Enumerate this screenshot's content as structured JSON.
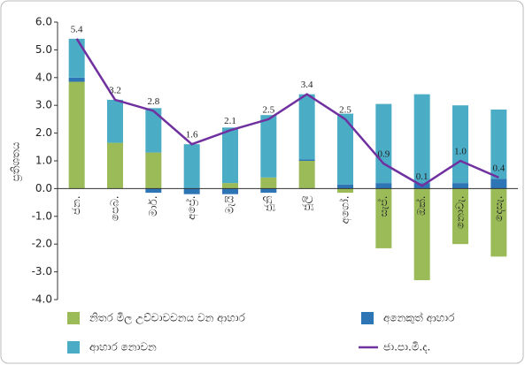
{
  "chart_data": {
    "type": "bar_line",
    "y_label": "ප්‍රතිශතය",
    "categories": [
      "ජන.",
      "පෙබ.",
      "මාර්.",
      "අප්‍රේ.",
      "මැයි",
      "ජූනි",
      "ජූලි",
      "අගෝ.",
      "සැප්.",
      "ඔක්.",
      "නොවැ.",
      "දෙසැ."
    ],
    "series": [
      {
        "name": "නිතර මිල උච්චාවචනය වන ආහාර",
        "color": "#9bbb59",
        "kind": "bar",
        "values": [
          3.85,
          1.65,
          1.3,
          0.0,
          0.2,
          0.4,
          1.0,
          -0.15,
          -2.15,
          -3.3,
          -2.0,
          -2.45
        ]
      },
      {
        "name": "අනෙකුත් ආහාර",
        "color": "#2e75b6",
        "kind": "bar",
        "values": [
          0.15,
          0.0,
          -0.15,
          -0.2,
          -0.2,
          -0.15,
          0.05,
          0.15,
          0.2,
          0.2,
          0.2,
          0.35
        ]
      },
      {
        "name": "ආහාර නොවන",
        "color": "#4bacc6",
        "kind": "bar",
        "values": [
          1.4,
          1.55,
          1.6,
          1.6,
          2.0,
          2.25,
          2.35,
          2.55,
          2.85,
          3.2,
          2.8,
          2.5
        ]
      },
      {
        "name": "ජා.පා.මි.ද.",
        "color": "#7030a0",
        "kind": "line",
        "values": [
          5.4,
          3.2,
          2.8,
          1.6,
          2.1,
          2.5,
          3.4,
          2.5,
          0.9,
          0.1,
          1.0,
          0.4
        ],
        "value_labels": [
          "5.4",
          "3.2",
          "2.8",
          "1.6",
          "2.1",
          "2.5",
          "3.4",
          "2.5",
          "0.9",
          "0.1",
          "1.0",
          "0.4"
        ]
      }
    ],
    "ylim": [
      -4,
      6
    ],
    "yticks": [
      {
        "value": -4,
        "label": "-4.0"
      },
      {
        "value": -3,
        "label": "-3.0"
      },
      {
        "value": -2,
        "label": "-2.0"
      },
      {
        "value": -1,
        "label": "-1.0"
      },
      {
        "value": 0,
        "label": "0.0"
      },
      {
        "value": 1,
        "label": "1.0"
      },
      {
        "value": 2,
        "label": "2.0"
      },
      {
        "value": 3,
        "label": "3.0"
      },
      {
        "value": 4,
        "label": "4.0"
      },
      {
        "value": 5,
        "label": "5.0"
      },
      {
        "value": 6,
        "label": "6.0"
      }
    ]
  }
}
